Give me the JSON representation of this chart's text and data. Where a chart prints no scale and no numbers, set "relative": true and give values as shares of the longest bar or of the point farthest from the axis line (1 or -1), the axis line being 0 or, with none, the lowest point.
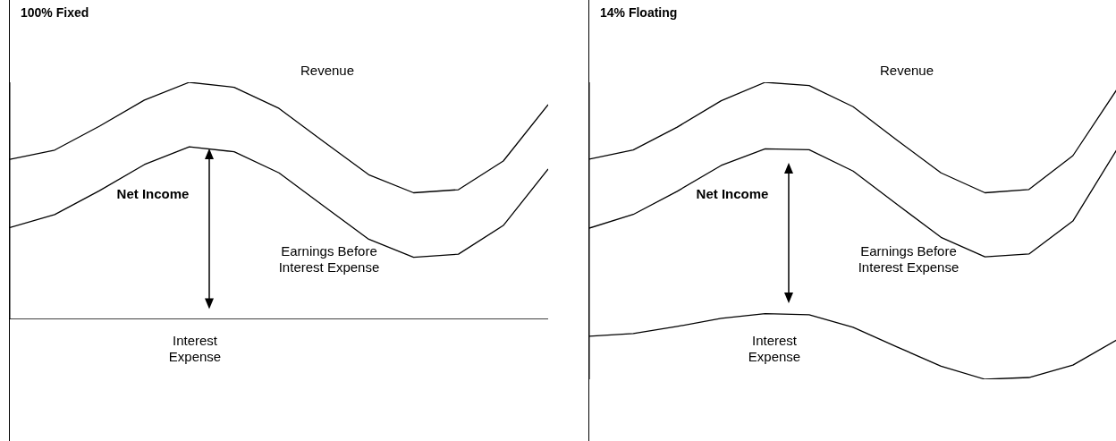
{
  "chart_data": [
    {
      "type": "line",
      "title": "100% Fixed",
      "relative": true,
      "marker": "none",
      "line_style": "solid",
      "categories": [
        null,
        null,
        null,
        null,
        null,
        null,
        null,
        null,
        null,
        null,
        null,
        null,
        null
      ],
      "series": [
        {
          "name": "Revenue",
          "color": "#000000",
          "values": [
            0.675,
            0.714,
            0.815,
            0.925,
            1,
            0.979,
            0.89,
            0.749,
            0.61,
            0.534,
            0.547,
            0.668,
            0.906
          ]
        },
        {
          "name": "Earnings Before Interest Expense",
          "color": "#000000",
          "values": [
            0.387,
            0.442,
            0.543,
            0.653,
            0.728,
            0.707,
            0.618,
            0.477,
            0.338,
            0.262,
            0.275,
            0.396,
            0.634
          ]
        },
        {
          "name": "Interest Expense",
          "color": "#000000",
          "values": [
            0,
            0,
            0,
            0,
            0,
            0,
            0,
            0,
            0,
            0,
            0,
            0,
            0
          ]
        }
      ],
      "annotations": [
        "Net Income"
      ]
    },
    {
      "type": "line",
      "title": "14% Floating",
      "relative": true,
      "marker": "none",
      "line_style": "solid",
      "categories": [
        null,
        null,
        null,
        null,
        null,
        null,
        null,
        null,
        null,
        null,
        null,
        null,
        null
      ],
      "series": [
        {
          "name": "Revenue",
          "color": "#000000",
          "values": [
            0.741,
            0.772,
            0.849,
            0.938,
            1,
            0.989,
            0.918,
            0.805,
            0.695,
            0.628,
            0.639,
            0.753,
            0.976
          ]
        },
        {
          "name": "Earnings Before Interest Expense",
          "color": "#000000",
          "values": [
            0.509,
            0.555,
            0.633,
            0.72,
            0.776,
            0.773,
            0.701,
            0.589,
            0.478,
            0.412,
            0.422,
            0.533,
            0.774
          ]
        },
        {
          "name": "Interest Expense",
          "color": "#000000",
          "values": [
            0.145,
            0.154,
            0.178,
            0.205,
            0.221,
            0.217,
            0.175,
            0.109,
            0.044,
            0,
            0.006,
            0.048,
            0.133
          ]
        }
      ],
      "annotations": [
        "Net Income"
      ]
    }
  ]
}
